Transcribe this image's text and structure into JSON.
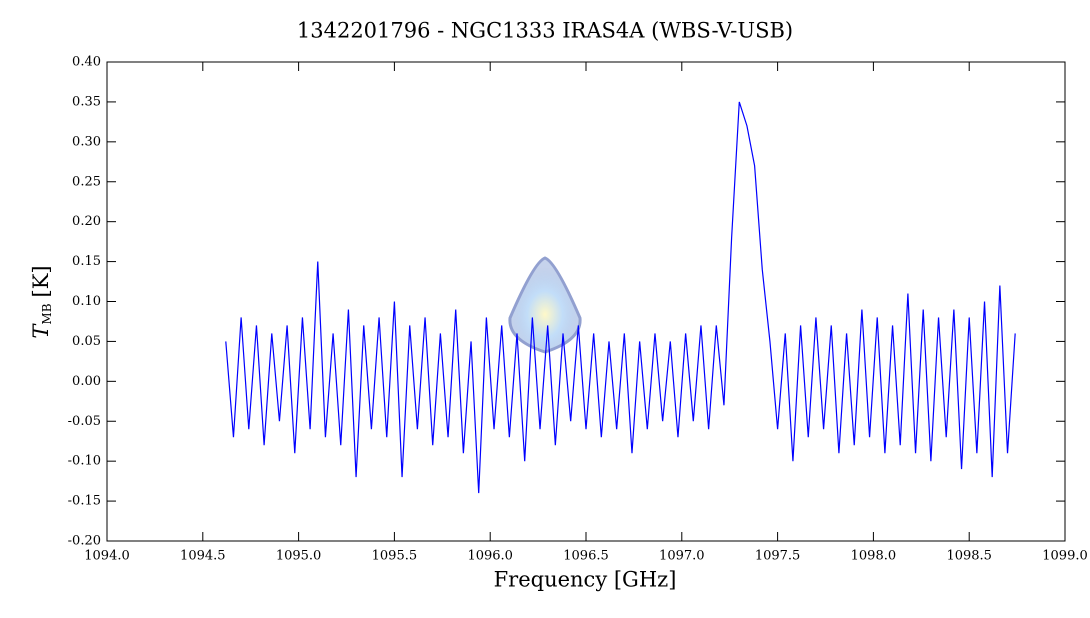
{
  "chart_data": {
    "type": "line",
    "title": "1342201796 - NGC1333 IRAS4A (WBS-V-USB)",
    "xlabel": "Frequency [GHz]",
    "ylabel": {
      "symbol": "T",
      "subscript": "MB",
      "unit": "[K]"
    },
    "xlim": [
      1094.0,
      1099.0
    ],
    "ylim": [
      -0.2,
      0.4
    ],
    "xticks": [
      {
        "value": 1094.0,
        "label": "1094.0"
      },
      {
        "value": 1094.5,
        "label": "1094.5"
      },
      {
        "value": 1095.0,
        "label": "1095.0"
      },
      {
        "value": 1095.5,
        "label": "1095.5"
      },
      {
        "value": 1096.0,
        "label": "1096.0"
      },
      {
        "value": 1096.5,
        "label": "1096.5"
      },
      {
        "value": 1097.0,
        "label": "1097.0"
      },
      {
        "value": 1097.5,
        "label": "1097.5"
      },
      {
        "value": 1098.0,
        "label": "1098.0"
      },
      {
        "value": 1098.5,
        "label": "1098.5"
      },
      {
        "value": 1099.0,
        "label": "1099.0"
      }
    ],
    "yticks": [
      {
        "value": -0.2,
        "label": "-0.20"
      },
      {
        "value": -0.15,
        "label": "-0.15"
      },
      {
        "value": -0.1,
        "label": "-0.10"
      },
      {
        "value": -0.05,
        "label": "-0.05"
      },
      {
        "value": 0,
        "label": "0.00"
      },
      {
        "value": 0.05,
        "label": "0.05"
      },
      {
        "value": 0.1,
        "label": "0.10"
      },
      {
        "value": 0.15,
        "label": "0.15"
      },
      {
        "value": 0.2,
        "label": "0.20"
      },
      {
        "value": 0.25,
        "label": "0.25"
      },
      {
        "value": 0.3,
        "label": "0.30"
      },
      {
        "value": 0.35,
        "label": "0.35"
      },
      {
        "value": 0.4,
        "label": "0.40"
      }
    ],
    "x": [
      1094.62,
      1094.66,
      1094.7,
      1094.74,
      1094.78,
      1094.82,
      1094.86,
      1094.9,
      1094.94,
      1094.98,
      1095.02,
      1095.06,
      1095.1,
      1095.14,
      1095.18,
      1095.22,
      1095.26,
      1095.3,
      1095.34,
      1095.38,
      1095.42,
      1095.46,
      1095.5,
      1095.54,
      1095.58,
      1095.62,
      1095.66,
      1095.7,
      1095.74,
      1095.78,
      1095.82,
      1095.86,
      1095.9,
      1095.94,
      1095.98,
      1096.02,
      1096.06,
      1096.1,
      1096.14,
      1096.18,
      1096.22,
      1096.26,
      1096.3,
      1096.34,
      1096.38,
      1096.42,
      1096.46,
      1096.5,
      1096.54,
      1096.58,
      1096.62,
      1096.66,
      1096.7,
      1096.74,
      1096.78,
      1096.82,
      1096.86,
      1096.9,
      1096.94,
      1096.98,
      1097.02,
      1097.06,
      1097.1,
      1097.14,
      1097.18,
      1097.22,
      1097.26,
      1097.3,
      1097.34,
      1097.38,
      1097.42,
      1097.46,
      1097.5,
      1097.54,
      1097.58,
      1097.62,
      1097.66,
      1097.7,
      1097.74,
      1097.78,
      1097.82,
      1097.86,
      1097.9,
      1097.94,
      1097.98,
      1098.02,
      1098.06,
      1098.1,
      1098.14,
      1098.18,
      1098.22,
      1098.26,
      1098.3,
      1098.34,
      1098.38,
      1098.42,
      1098.46,
      1098.5,
      1098.54,
      1098.58,
      1098.62,
      1098.66,
      1098.7,
      1098.74
    ],
    "series": [
      {
        "color": "#0000ff",
        "values": [
          0.05,
          -0.07,
          0.08,
          -0.06,
          0.07,
          -0.08,
          0.06,
          -0.05,
          0.07,
          -0.09,
          0.08,
          -0.06,
          0.15,
          -0.07,
          0.06,
          -0.08,
          0.09,
          -0.12,
          0.07,
          -0.06,
          0.08,
          -0.07,
          0.1,
          -0.12,
          0.07,
          -0.06,
          0.08,
          -0.08,
          0.06,
          -0.07,
          0.09,
          -0.09,
          0.05,
          -0.14,
          0.08,
          -0.06,
          0.07,
          -0.07,
          0.06,
          -0.1,
          0.08,
          -0.06,
          0.07,
          -0.08,
          0.06,
          -0.05,
          0.07,
          -0.06,
          0.06,
          -0.07,
          0.05,
          -0.06,
          0.06,
          -0.09,
          0.05,
          -0.06,
          0.06,
          -0.05,
          0.05,
          -0.07,
          0.06,
          -0.05,
          0.07,
          -0.06,
          0.07,
          -0.03,
          0.18,
          0.35,
          0.32,
          0.27,
          0.14,
          0.05,
          -0.06,
          0.06,
          -0.1,
          0.07,
          -0.07,
          0.08,
          -0.06,
          0.07,
          -0.09,
          0.06,
          -0.08,
          0.09,
          -0.07,
          0.08,
          -0.09,
          0.07,
          -0.08,
          0.11,
          -0.09,
          0.09,
          -0.1,
          0.08,
          -0.07,
          0.09,
          -0.11,
          0.08,
          -0.09,
          0.1,
          -0.12,
          0.12,
          -0.09,
          0.06
        ]
      }
    ]
  }
}
